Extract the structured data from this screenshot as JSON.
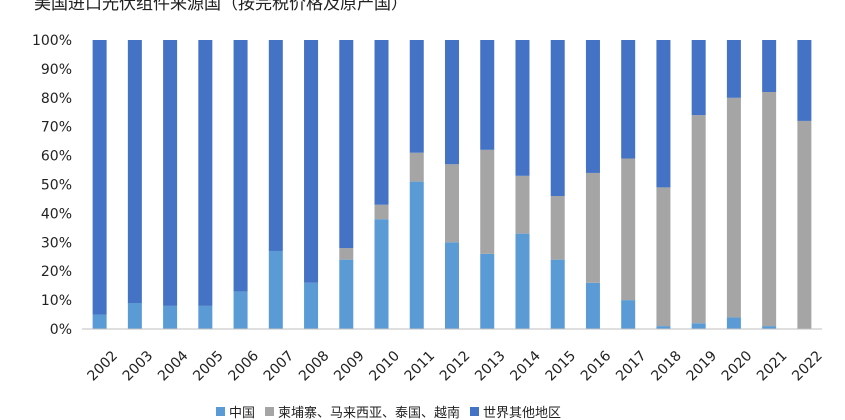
{
  "chart_data": {
    "type": "bar",
    "stacked": true,
    "title": "美国进口光伏组件来源国（按完税价格及原产国）",
    "xlabel": "",
    "ylabel": "",
    "ylim": [
      0,
      100
    ],
    "yticks": [
      "0%",
      "10%",
      "20%",
      "30%",
      "40%",
      "50%",
      "60%",
      "70%",
      "80%",
      "90%",
      "100%"
    ],
    "categories": [
      "2002",
      "2003",
      "2004",
      "2005",
      "2006",
      "2007",
      "2008",
      "2009",
      "2010",
      "2011",
      "2012",
      "2013",
      "2014",
      "2015",
      "2016",
      "2017",
      "2018",
      "2019",
      "2020",
      "2021",
      "2022"
    ],
    "legend_position": "bottom",
    "series": [
      {
        "name": "中国",
        "color": "#5b9bd5",
        "values": [
          5,
          9,
          8,
          8,
          13,
          27,
          16,
          24,
          38,
          51,
          30,
          26,
          33,
          24,
          16,
          10,
          1,
          2,
          4,
          1,
          0
        ]
      },
      {
        "name": "柬埔寨、马来西亚、泰国、越南",
        "color": "#a5a5a5",
        "values": [
          0,
          0,
          0,
          0,
          0,
          0,
          0,
          4,
          5,
          10,
          27,
          36,
          20,
          22,
          38,
          49,
          48,
          72,
          76,
          81,
          72
        ]
      },
      {
        "name": "世界其他地区",
        "color": "#4472c4",
        "values": [
          95,
          91,
          92,
          92,
          87,
          73,
          84,
          72,
          57,
          39,
          43,
          38,
          47,
          54,
          46,
          41,
          51,
          26,
          20,
          18,
          28
        ]
      }
    ]
  }
}
